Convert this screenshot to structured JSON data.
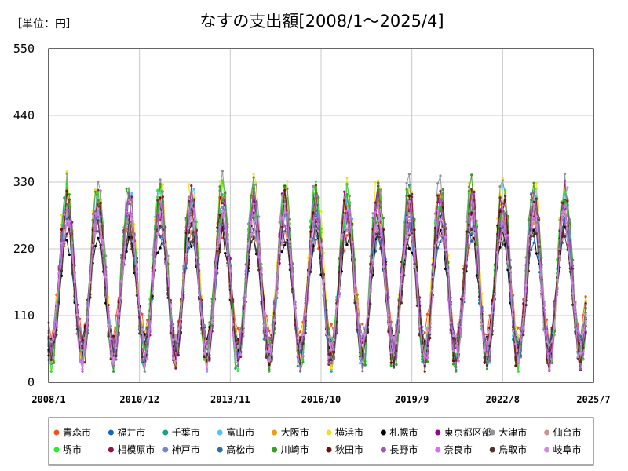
{
  "unit_label": "［単位：円］",
  "chart_data": {
    "type": "line",
    "title": "なすの支出額[2008/1～2025/4]",
    "xlabel": "",
    "ylabel": "",
    "ylim": [
      0,
      550
    ],
    "yticks": [
      0,
      110,
      220,
      330,
      440,
      550
    ],
    "xtick_labels": [
      "2008/1",
      "2010/12",
      "2013/11",
      "2016/10",
      "2019/9",
      "2022/8",
      "2025/7"
    ],
    "x_range": [
      "2008/1",
      "2025/7"
    ],
    "x_end_data": "2025/4",
    "grid": true,
    "legend_position": "bottom",
    "series": [
      {
        "name": "青森市",
        "color": "#f4511e",
        "base": 165,
        "amp": 85,
        "noise": 22
      },
      {
        "name": "福井市",
        "color": "#1565c0",
        "base": 150,
        "amp": 100,
        "noise": 22
      },
      {
        "name": "千葉市",
        "color": "#16a085",
        "base": 165,
        "amp": 130,
        "noise": 30
      },
      {
        "name": "富山市",
        "color": "#5bc0eb",
        "base": 175,
        "amp": 130,
        "noise": 35
      },
      {
        "name": "大阪市",
        "color": "#f39c12",
        "base": 170,
        "amp": 120,
        "noise": 28
      },
      {
        "name": "横浜市",
        "color": "#f1e21c",
        "base": 185,
        "amp": 135,
        "noise": 32
      },
      {
        "name": "札幌市",
        "color": "#000000",
        "base": 150,
        "amp": 90,
        "noise": 20
      },
      {
        "name": "東京都区部",
        "color": "#8e0a8a",
        "base": 175,
        "amp": 130,
        "noise": 30
      },
      {
        "name": "大津市",
        "color": "#8c9298",
        "base": 180,
        "amp": 140,
        "noise": 32
      },
      {
        "name": "仙台市",
        "color": "#c9958c",
        "base": 160,
        "amp": 105,
        "noise": 25
      },
      {
        "name": "堺市",
        "color": "#2ee82e",
        "base": 175,
        "amp": 130,
        "noise": 30
      },
      {
        "name": "相模原市",
        "color": "#8b1a3a",
        "base": 170,
        "amp": 125,
        "noise": 30
      },
      {
        "name": "神戸市",
        "color": "#7b86c4",
        "base": 165,
        "amp": 110,
        "noise": 26
      },
      {
        "name": "高松市",
        "color": "#2f6f9f",
        "base": 160,
        "amp": 110,
        "noise": 26
      },
      {
        "name": "川崎市",
        "color": "#3a9d23",
        "base": 175,
        "amp": 135,
        "noise": 32
      },
      {
        "name": "秋田市",
        "color": "#6a0f0f",
        "base": 165,
        "amp": 120,
        "noise": 34
      },
      {
        "name": "長野市",
        "color": "#9b59b6",
        "base": 165,
        "amp": 120,
        "noise": 30
      },
      {
        "name": "奈良市",
        "color": "#d86ef2",
        "base": 160,
        "amp": 115,
        "noise": 26
      },
      {
        "name": "鳥取市",
        "color": "#4e342e",
        "base": 150,
        "amp": 100,
        "noise": 24
      },
      {
        "name": "岐阜市",
        "color": "#cc8fdc",
        "base": 160,
        "amp": 110,
        "noise": 26
      }
    ]
  }
}
